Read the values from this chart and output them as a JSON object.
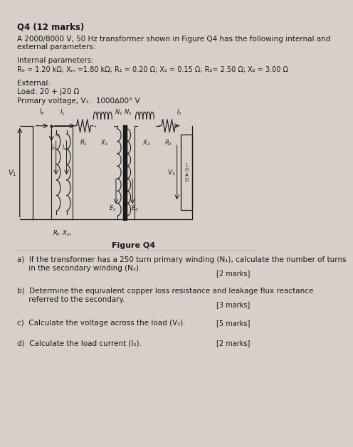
{
  "title": "Q4 (12 marks)",
  "intro": "A 2000/8000 V, 50 Hz transformer shown in Figure Q4 has the following internal and\nexternal parameters:",
  "internal_label": "Internal parameters:",
  "internal_params": "R₀ = 1.20 kΩ; Xₘ =1.80 kΩ; R₁ = 0.20 Ω; X₁ = 0.15 Ω; R₂= 2.50 Ω; X₂ = 3.00 Ω",
  "external_label": "External:",
  "load_line": "Load: 20 + j20 Ω",
  "voltage_line": "Primary voltage, V₁:  1000∆00° V",
  "figure_label": "Figure Q4",
  "qa": "a)  If the transformer has a 250 turn primary winding (N₁), calculate the number of turns\n     in the secondary winding (N₂).",
  "qa_marks": "[2 marks]",
  "qb": "b)  Determine the equivalent copper loss resistance and leakage flux reactance\n     referred to the secondary.",
  "qb_marks": "[3 marks]",
  "qc": "c)  Calculate the voltage across the load (V₂).",
  "qc_marks": "[5 marks]",
  "qd": "d)  Calculate the load current (I₂).",
  "qd_marks": "[2 marks]",
  "bg_color": "#d8d0c8",
  "text_color": "#1a1a1a"
}
